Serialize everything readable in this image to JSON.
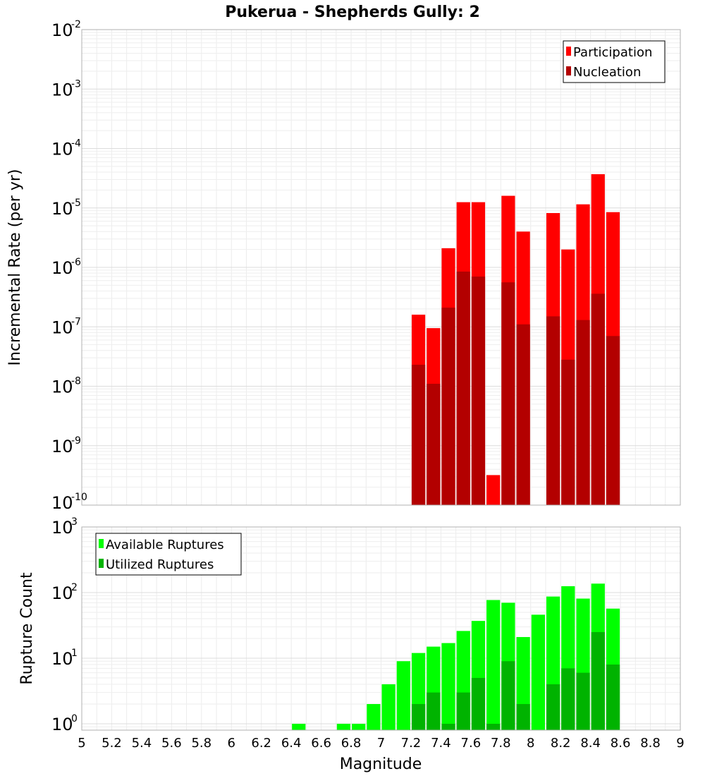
{
  "chart_data": [
    {
      "type": "bar",
      "title": "Pukerua - Shepherds Gully: 2",
      "xlabel": "",
      "ylabel": "Incremental Rate (per yr)",
      "yscale": "log",
      "ylim": [
        1e-10,
        0.01
      ],
      "xlim": [
        5,
        9
      ],
      "y_tick_bases": [
        "10",
        "10",
        "10",
        "10",
        "10",
        "10",
        "10",
        "10",
        "10"
      ],
      "y_tick_exponents": [
        "-10",
        "-9",
        "-8",
        "-7",
        "-6",
        "-5",
        "-4",
        "-3",
        "-2"
      ],
      "y_tick_values": [
        1e-10,
        1e-09,
        1e-08,
        1e-07,
        1e-06,
        1e-05,
        0.0001,
        0.001,
        0.01
      ],
      "bar_width": 0.1,
      "legend_position": "top-right",
      "grid": true,
      "series": [
        {
          "name": "Participation",
          "color": "#ff0000",
          "x": [
            7.25,
            7.35,
            7.45,
            7.55,
            7.65,
            7.75,
            7.85,
            7.95,
            8.15,
            8.25,
            8.35,
            8.45,
            8.55
          ],
          "values": [
            1.6e-07,
            9.5e-08,
            2.1e-06,
            1.25e-05,
            1.25e-05,
            3.2e-10,
            1.6e-05,
            4e-06,
            8.2e-06,
            2e-06,
            1.15e-05,
            3.7e-05,
            8.5e-06
          ]
        },
        {
          "name": "Nucleation",
          "color": "#b30000",
          "x": [
            7.25,
            7.35,
            7.45,
            7.55,
            7.65,
            7.85,
            7.95,
            8.15,
            8.25,
            8.35,
            8.45,
            8.55
          ],
          "values": [
            2.3e-08,
            1.1e-08,
            2.1e-07,
            8.5e-07,
            7e-07,
            5.6e-07,
            1.1e-07,
            1.5e-07,
            2.8e-08,
            1.3e-07,
            3.6e-07,
            7e-08
          ]
        }
      ]
    },
    {
      "type": "bar",
      "title": "",
      "xlabel": "Magnitude",
      "ylabel": "Rupture Count",
      "yscale": "log",
      "ylim": [
        0.8,
        1000
      ],
      "xlim": [
        5,
        9
      ],
      "y_tick_bases": [
        "10",
        "10",
        "10",
        "10"
      ],
      "y_tick_exponents": [
        "0",
        "1",
        "2",
        "3"
      ],
      "y_tick_values": [
        1,
        10,
        100,
        1000
      ],
      "x_ticks": [
        "5",
        "5.2",
        "5.4",
        "5.6",
        "5.8",
        "6",
        "6.2",
        "6.4",
        "6.6",
        "6.8",
        "7",
        "7.2",
        "7.4",
        "7.6",
        "7.8",
        "8",
        "8.2",
        "8.4",
        "8.6",
        "8.8",
        "9"
      ],
      "bar_width": 0.1,
      "legend_position": "top-left",
      "grid": true,
      "series": [
        {
          "name": "Available Ruptures",
          "color": "#00ff00",
          "x": [
            6.45,
            6.75,
            6.85,
            6.95,
            7.05,
            7.15,
            7.25,
            7.35,
            7.45,
            7.55,
            7.65,
            7.75,
            7.85,
            7.95,
            8.05,
            8.15,
            8.25,
            8.35,
            8.45,
            8.55
          ],
          "values": [
            1,
            1,
            1,
            2,
            4,
            9,
            12,
            15,
            17,
            26,
            37,
            77,
            70,
            21,
            46,
            87,
            125,
            81,
            137,
            57
          ]
        },
        {
          "name": "Utilized Ruptures",
          "color": "#00b300",
          "x": [
            7.25,
            7.35,
            7.45,
            7.55,
            7.65,
            7.75,
            7.85,
            7.95,
            8.15,
            8.25,
            8.35,
            8.45,
            8.55
          ],
          "values": [
            2,
            3,
            1,
            3,
            5,
            1,
            9,
            2,
            4,
            7,
            6,
            25,
            8
          ]
        }
      ]
    }
  ]
}
